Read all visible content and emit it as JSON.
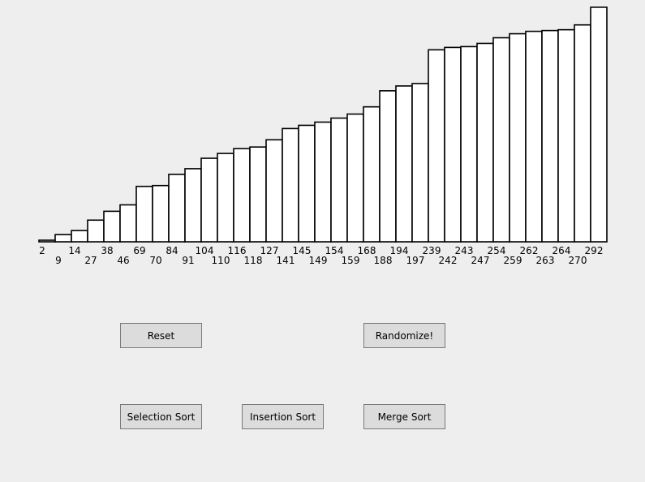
{
  "chart_data": {
    "type": "bar",
    "values": [
      2,
      9,
      14,
      27,
      38,
      46,
      69,
      70,
      84,
      91,
      104,
      110,
      116,
      118,
      127,
      141,
      145,
      149,
      154,
      159,
      168,
      188,
      194,
      197,
      239,
      242,
      243,
      247,
      254,
      259,
      262,
      263,
      264,
      270,
      292
    ],
    "labels": [
      "2",
      "9",
      "14",
      "27",
      "38",
      "46",
      "69",
      "70",
      "84",
      "91",
      "104",
      "110",
      "116",
      "118",
      "127",
      "141",
      "145",
      "149",
      "154",
      "159",
      "168",
      "188",
      "194",
      "197",
      "239",
      "242",
      "243",
      "247",
      "254",
      "259",
      "262",
      "263",
      "264",
      "270",
      "292"
    ],
    "title": "",
    "xlabel": "",
    "ylabel": "",
    "grid": false
  },
  "controls": {
    "reset_label": "Reset",
    "randomize_label": "Randomize!",
    "selection_sort_label": "Selection Sort",
    "insertion_sort_label": "Insertion Sort",
    "merge_sort_label": "Merge Sort"
  }
}
